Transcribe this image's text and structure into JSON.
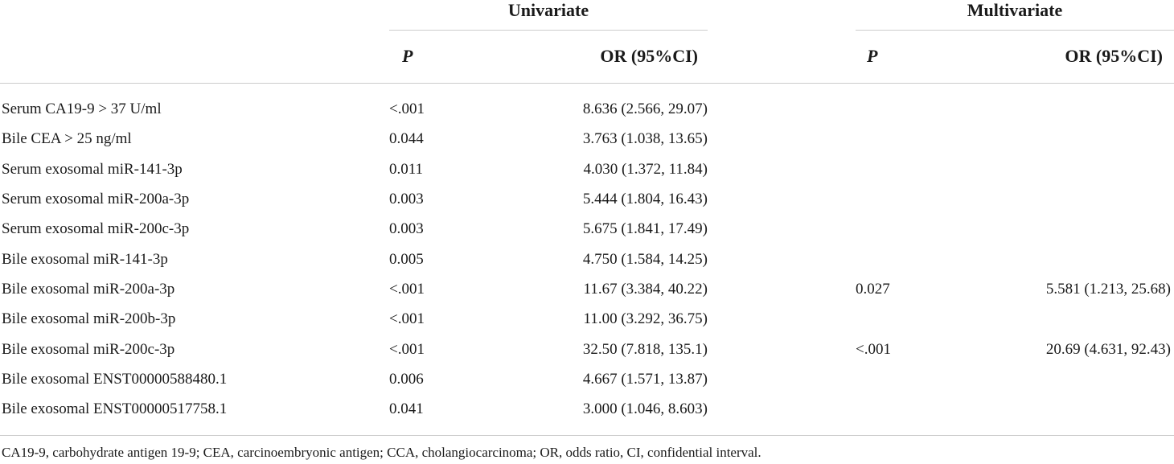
{
  "table": {
    "groups": {
      "univariate": "Univariate",
      "multivariate": "Multivariate"
    },
    "columns": {
      "univariate_p": "P",
      "univariate_or": "OR (95%CI)",
      "multivariate_p": "P",
      "multivariate_or": "OR (95%CI)"
    },
    "rows": [
      {
        "label": "Serum CA19-9 > 37 U/ml",
        "u_p": "<.001",
        "u_or": "8.636 (2.566, 29.07)",
        "m_p": "",
        "m_or": ""
      },
      {
        "label": "Bile CEA > 25 ng/ml",
        "u_p": "0.044",
        "u_or": "3.763 (1.038, 13.65)",
        "m_p": "",
        "m_or": ""
      },
      {
        "label": "Serum exosomal miR-141-3p",
        "u_p": "0.011",
        "u_or": "4.030 (1.372, 11.84)",
        "m_p": "",
        "m_or": ""
      },
      {
        "label": "Serum exosomal miR-200a-3p",
        "u_p": "0.003",
        "u_or": "5.444 (1.804, 16.43)",
        "m_p": "",
        "m_or": ""
      },
      {
        "label": "Serum exosomal miR-200c-3p",
        "u_p": "0.003",
        "u_or": "5.675 (1.841, 17.49)",
        "m_p": "",
        "m_or": ""
      },
      {
        "label": "Bile exosomal miR-141-3p",
        "u_p": "0.005",
        "u_or": "4.750 (1.584, 14.25)",
        "m_p": "",
        "m_or": ""
      },
      {
        "label": "Bile exosomal miR-200a-3p",
        "u_p": "<.001",
        "u_or": "11.67 (3.384, 40.22)",
        "m_p": "0.027",
        "m_or": "5.581 (1.213, 25.68)"
      },
      {
        "label": "Bile exosomal miR-200b-3p",
        "u_p": "<.001",
        "u_or": "11.00 (3.292, 36.75)",
        "m_p": "",
        "m_or": ""
      },
      {
        "label": "Bile exosomal miR-200c-3p",
        "u_p": "<.001",
        "u_or": "32.50 (7.818, 135.1)",
        "m_p": "<.001",
        "m_or": "20.69 (4.631, 92.43)"
      },
      {
        "label": "Bile exosomal ENST00000588480.1",
        "u_p": "0.006",
        "u_or": "4.667 (1.571, 13.87)",
        "m_p": "",
        "m_or": ""
      },
      {
        "label": "Bile exosomal ENST00000517758.1",
        "u_p": "0.041",
        "u_or": "3.000 (1.046, 8.603)",
        "m_p": "",
        "m_or": ""
      }
    ],
    "footnote": "CA19-9, carbohydrate antigen 19-9; CEA, carcinoembryonic antigen; CCA, cholangiocarcinoma; OR, odds ratio, CI, confidential interval."
  }
}
